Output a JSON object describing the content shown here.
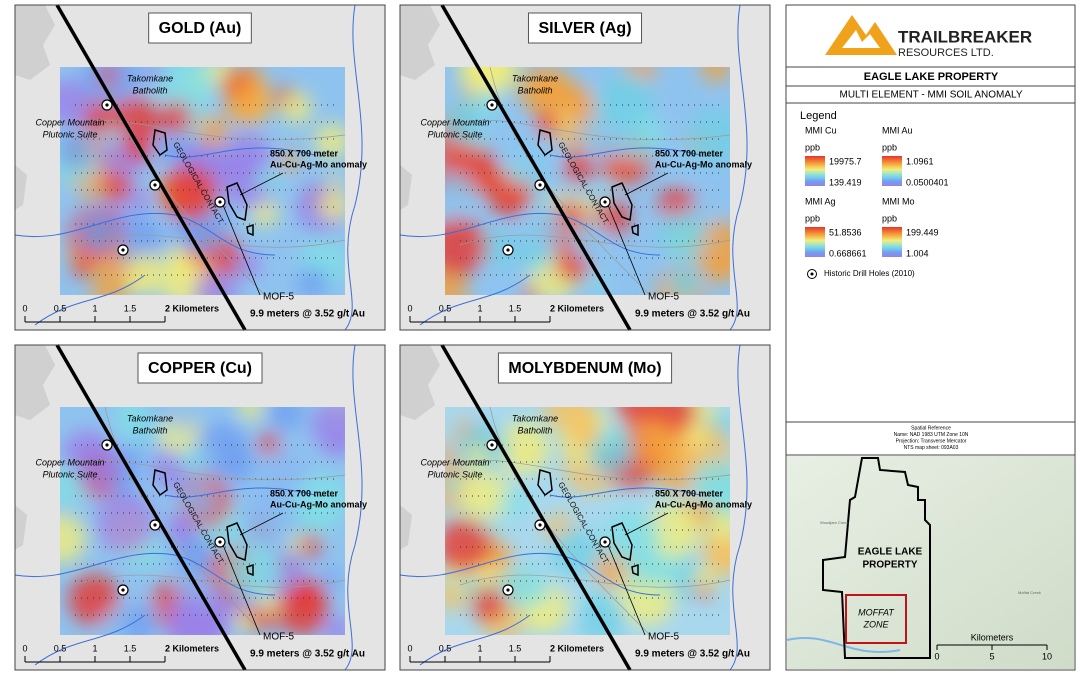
{
  "panels": [
    {
      "title": "GOLD (Au)",
      "batholith": [
        "Takomkane",
        "Batholith"
      ],
      "suite": [
        "Copper Mountain",
        "Plutonic Suite"
      ],
      "contact": "GEOLOGICAL CONTACT",
      "anomaly": [
        "850 X 700 meter",
        "Au-Cu-Ag-Mo anomaly"
      ],
      "hole": "MOF-5",
      "intercept": "9.9 meters @ 3.52 g/t Au",
      "scale": [
        "0",
        "0.5",
        "1",
        "1.5",
        "2 Kilometers"
      ]
    },
    {
      "title": "SILVER (Ag)",
      "batholith": [
        "Takomkane",
        "Batholith"
      ],
      "suite": [
        "Copper Mountain",
        "Plutonic Suite"
      ],
      "contact": "GEOLOGICAL CONTACT",
      "anomaly": [
        "850 X 700 meter",
        "Au-Cu-Ag-Mo anomaly"
      ],
      "hole": "MOF-5",
      "intercept": "9.9 meters @ 3.52 g/t Au",
      "scale": [
        "0",
        "0.5",
        "1",
        "1.5",
        "2 Kilometers"
      ]
    },
    {
      "title": "COPPER (Cu)",
      "batholith": [
        "Takomkane",
        "Batholith"
      ],
      "suite": [
        "Copper Mountain",
        "Plutonic Suite"
      ],
      "contact": "GEOLOGICAL CONTACT",
      "anomaly": [
        "850 X 700 meter",
        "Au-Cu-Ag-Mo anomaly"
      ],
      "hole": "MOF-5",
      "intercept": "9.9 meters @ 3.52 g/t Au",
      "scale": [
        "0",
        "0.5",
        "1",
        "1.5",
        "2 Kilometers"
      ]
    },
    {
      "title": "MOLYBDENUM (Mo)",
      "batholith": [
        "Takomkane",
        "Batholith"
      ],
      "suite": [
        "Copper Mountain",
        "Plutonic Suite"
      ],
      "contact": "GEOLOGICAL CONTACT",
      "anomaly": [
        "850 X 700 meter",
        "Au-Cu-Ag-Mo anomaly"
      ],
      "hole": "MOF-5",
      "intercept": "9.9 meters @ 3.52 g/t Au",
      "scale": [
        "0",
        "0.5",
        "1",
        "1.5",
        "2 Kilometers"
      ]
    }
  ],
  "sidebar": {
    "company": [
      "TRAILBREAKER",
      "RESOURCES LTD."
    ],
    "property": "EAGLE LAKE PROPERTY",
    "subtitle": "MULTI ELEMENT - MMI SOIL ANOMALY",
    "legend_title": "Legend",
    "legend": [
      {
        "name": "MMI Cu",
        "unit": "ppb",
        "max": 19975.7,
        "min": 139.419
      },
      {
        "name": "MMI Au",
        "unit": "ppb",
        "max": 1.0961,
        "min": 0.0500401
      },
      {
        "name": "MMI Ag",
        "unit": "ppb",
        "max": 51.8536,
        "min": 0.668661
      },
      {
        "name": "MMI Mo",
        "unit": "ppb",
        "max": 199.449,
        "min": 1.004
      }
    ],
    "drill_holes": "Historic Drill Holes (2010)",
    "spatial_reference": [
      "Spatial Reference",
      "Name: NAD 1983 UTM Zone 10N",
      "Projection: Transverse Mercator",
      "NTS map sheet: 093A03"
    ],
    "inset": {
      "property": [
        "EAGLE LAKE",
        "PROPERTY"
      ],
      "zone": [
        "MOFFAT",
        "ZONE"
      ],
      "creeks": [
        "Woodjam Creek",
        "Moffat Creek"
      ],
      "scale_title": "Kilometers",
      "scale": [
        "0",
        "5",
        "10"
      ]
    }
  }
}
